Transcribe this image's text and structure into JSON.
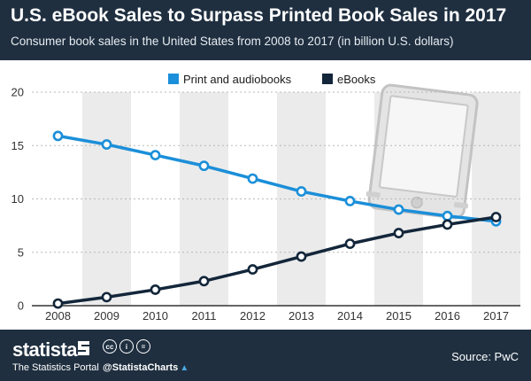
{
  "header": {
    "title": "U.S. eBook Sales to Surpass Printed Book Sales in 2017",
    "subtitle": "Consumer book sales in the United States from 2008 to 2017 (in billion U.S. dollars)"
  },
  "chart_data": {
    "type": "line",
    "title": "U.S. eBook Sales to Surpass Printed Book Sales in 2017",
    "subtitle": "Consumer book sales in the United States from 2008 to 2017 (in billion U.S. dollars)",
    "xlabel": "",
    "ylabel": "",
    "categories": [
      "2008",
      "2009",
      "2010",
      "2011",
      "2012",
      "2013",
      "2014",
      "2015",
      "2016",
      "2017"
    ],
    "yticks": [
      "0",
      "5",
      "10",
      "15",
      "20"
    ],
    "ylim": [
      0,
      20
    ],
    "legend_position": "top",
    "series": [
      {
        "name": "Print and audiobooks",
        "color": "#1b8fd9",
        "values": [
          15.9,
          15.1,
          14.1,
          13.1,
          11.9,
          10.7,
          9.8,
          9.0,
          8.4,
          7.9
        ]
      },
      {
        "name": "eBooks",
        "color": "#13263a",
        "values": [
          0.2,
          0.8,
          1.5,
          2.3,
          3.4,
          4.6,
          5.8,
          6.8,
          7.6,
          8.3
        ]
      }
    ]
  },
  "footer": {
    "brand": "statista",
    "tagline": "The Statistics Portal",
    "license_icons": [
      "cc",
      "i",
      "="
    ],
    "handle": "@StatistaCharts",
    "source": "Source: PwC"
  },
  "colors": {
    "header_bg": "#1f2f40",
    "print_series": "#1b8fd9",
    "ebook_series": "#13263a",
    "stripe": "#ebebeb"
  }
}
